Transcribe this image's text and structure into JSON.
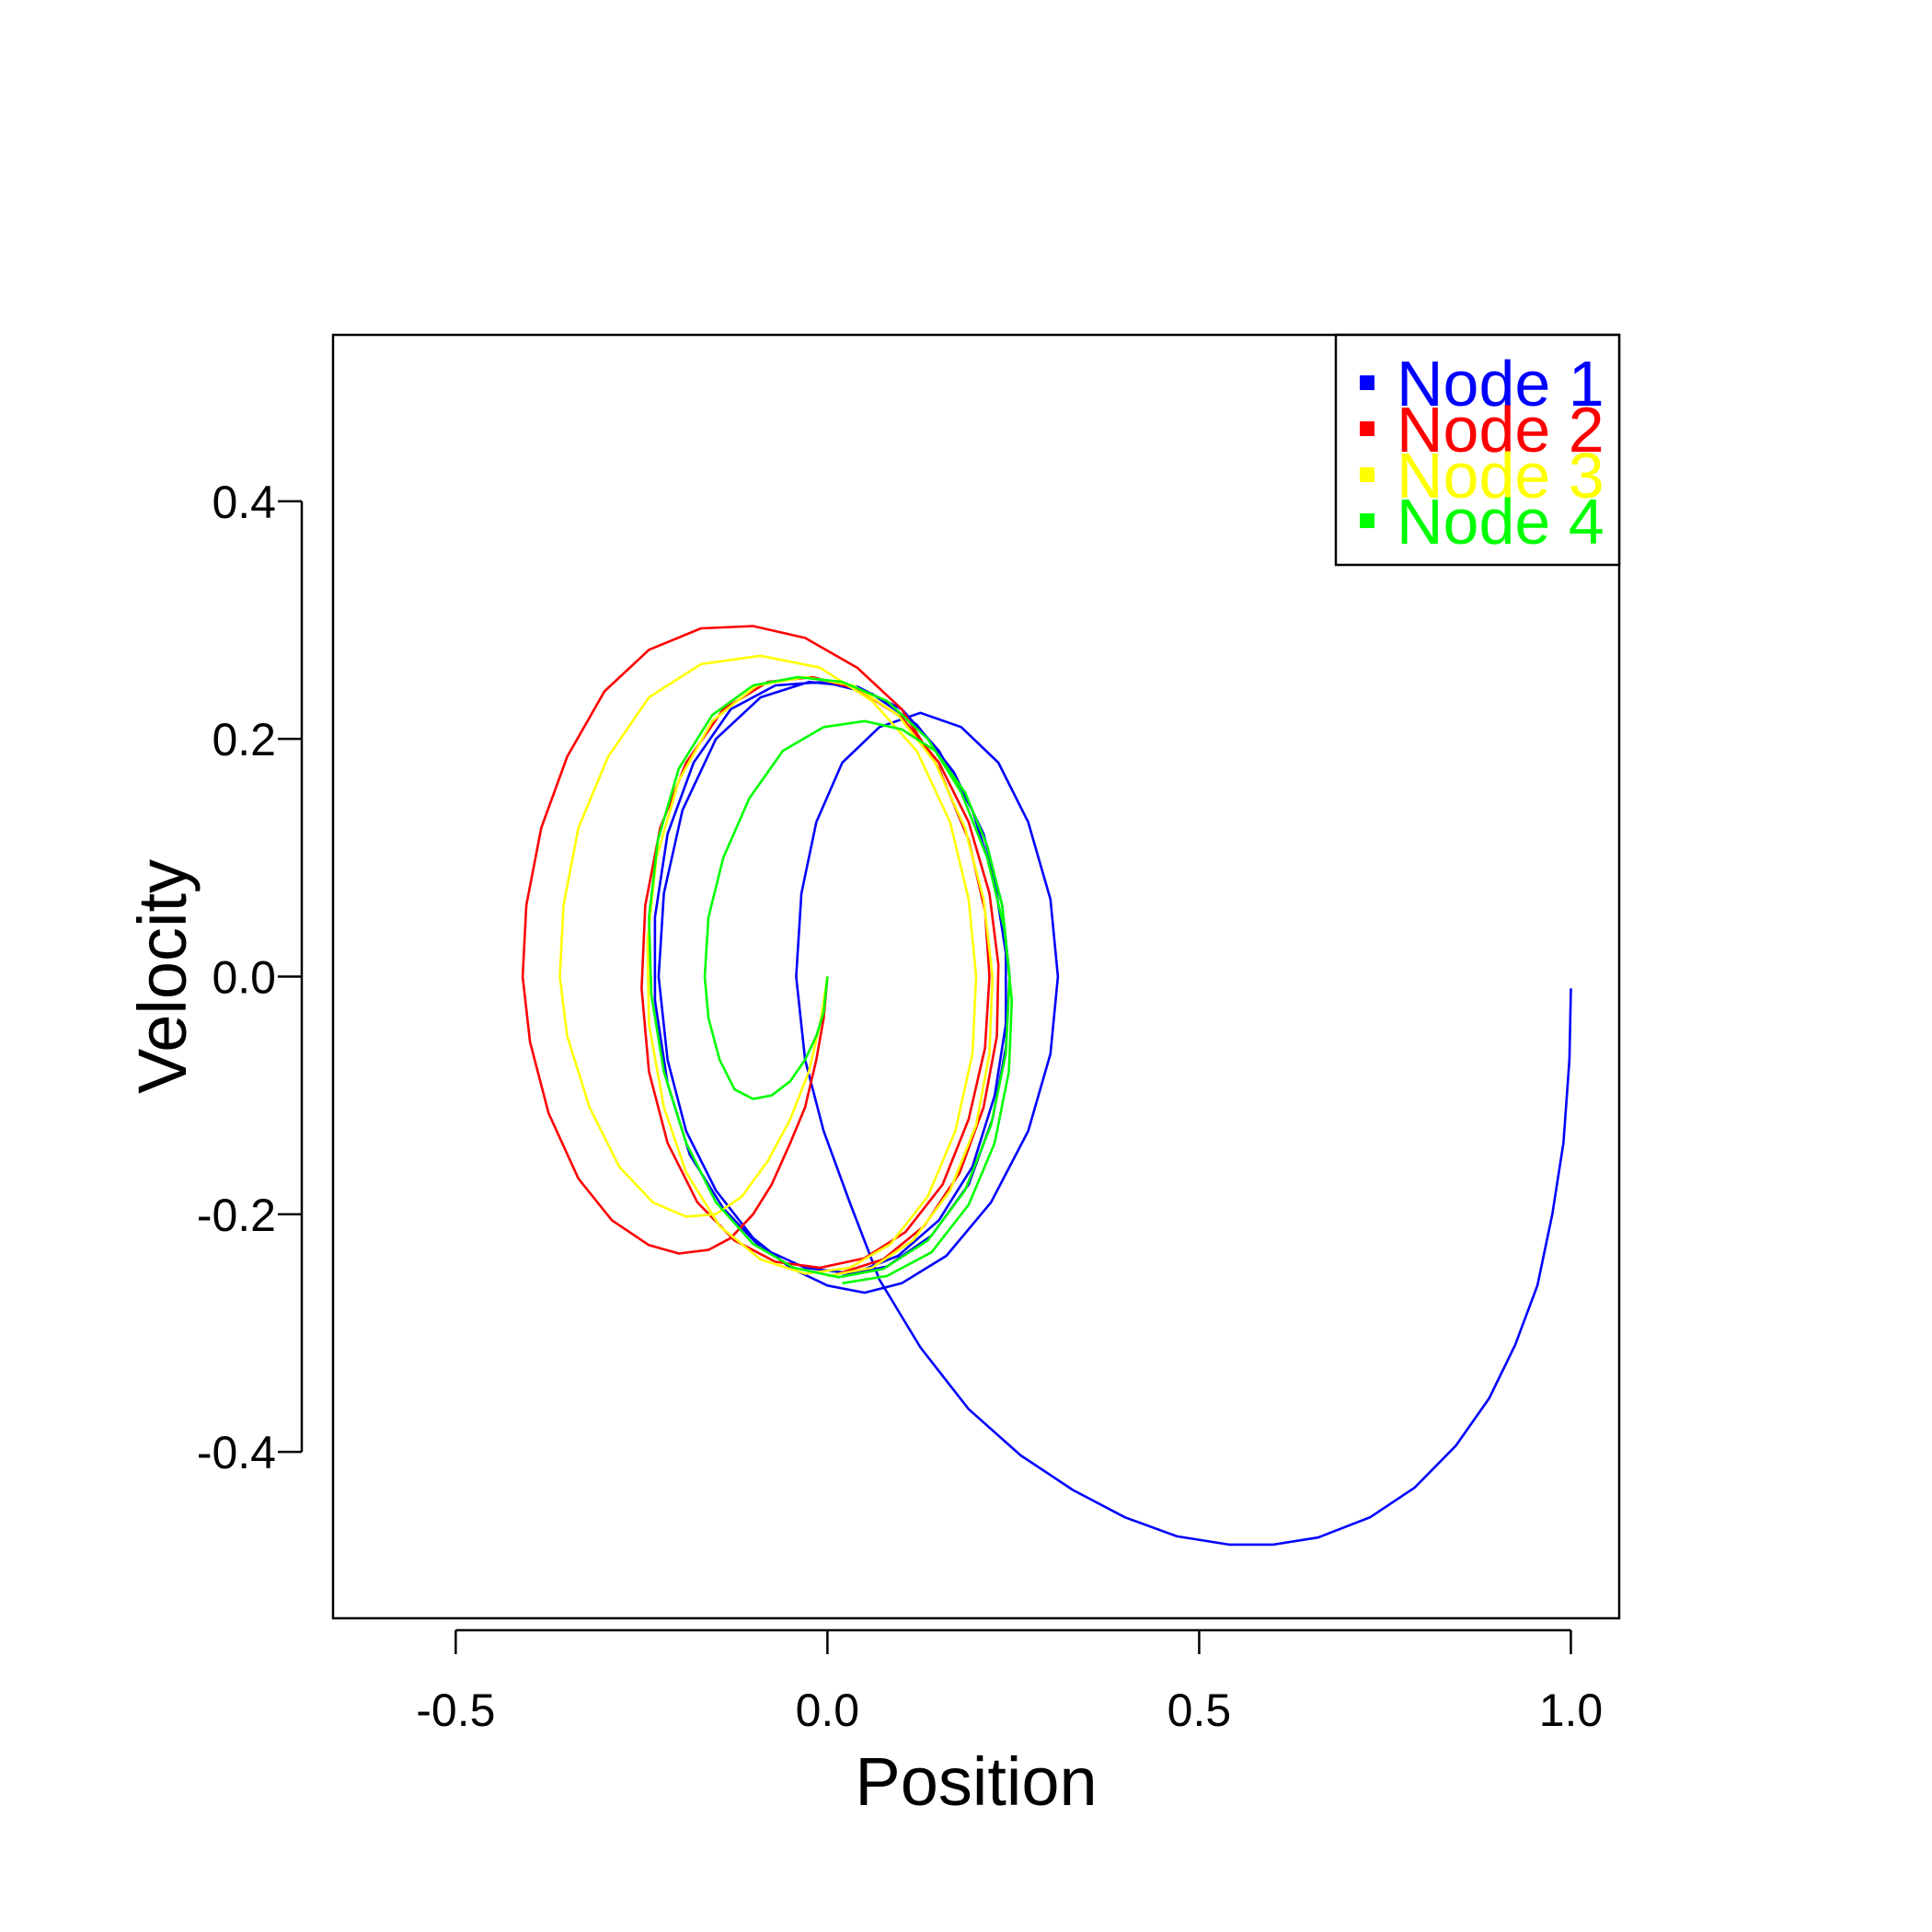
{
  "chart_data": {
    "type": "line",
    "title": "",
    "xlabel": "Position",
    "ylabel": "Velocity",
    "xlim": [
      -0.665,
      1.065
    ],
    "ylim": [
      -0.54,
      0.54
    ],
    "xticks": [
      -0.5,
      0.0,
      0.5,
      1.0
    ],
    "xtick_labels": [
      "-0.5",
      "0.0",
      "0.5",
      "1.0"
    ],
    "yticks": [
      -0.4,
      -0.2,
      0.0,
      0.2,
      0.4
    ],
    "ytick_labels": [
      "-0.4",
      "-0.2",
      "0.0",
      "0.2",
      "0.4"
    ],
    "grid": false,
    "legend_position": "top-right",
    "series": [
      {
        "name": "Node 1",
        "color": "#0000FF",
        "points": [
          [
            1.0,
            -0.01
          ],
          [
            0.998,
            -0.07
          ],
          [
            0.99,
            -0.14
          ],
          [
            0.975,
            -0.2
          ],
          [
            0.955,
            -0.26
          ],
          [
            0.925,
            -0.31
          ],
          [
            0.89,
            -0.355
          ],
          [
            0.845,
            -0.395
          ],
          [
            0.79,
            -0.43
          ],
          [
            0.73,
            -0.455
          ],
          [
            0.66,
            -0.472
          ],
          [
            0.6,
            -0.478
          ],
          [
            0.54,
            -0.478
          ],
          [
            0.47,
            -0.471
          ],
          [
            0.4,
            -0.455
          ],
          [
            0.33,
            -0.432
          ],
          [
            0.26,
            -0.403
          ],
          [
            0.19,
            -0.364
          ],
          [
            0.125,
            -0.312
          ],
          [
            0.07,
            -0.255
          ],
          [
            0.03,
            -0.19
          ],
          [
            -0.005,
            -0.13
          ],
          [
            -0.03,
            -0.07
          ],
          [
            -0.042,
            0.0
          ],
          [
            -0.035,
            0.07
          ],
          [
            -0.015,
            0.13
          ],
          [
            0.02,
            0.18
          ],
          [
            0.07,
            0.21
          ],
          [
            0.125,
            0.222
          ],
          [
            0.18,
            0.21
          ],
          [
            0.23,
            0.18
          ],
          [
            0.27,
            0.13
          ],
          [
            0.3,
            0.065
          ],
          [
            0.31,
            0.0
          ],
          [
            0.3,
            -0.065
          ],
          [
            0.27,
            -0.13
          ],
          [
            0.22,
            -0.19
          ],
          [
            0.16,
            -0.235
          ],
          [
            0.1,
            -0.258
          ],
          [
            0.05,
            -0.266
          ],
          [
            0.0,
            -0.26
          ],
          [
            -0.05,
            -0.245
          ],
          [
            -0.1,
            -0.22
          ],
          [
            -0.15,
            -0.18
          ],
          [
            -0.19,
            -0.13
          ],
          [
            -0.215,
            -0.07
          ],
          [
            -0.227,
            0.0
          ],
          [
            -0.22,
            0.07
          ],
          [
            -0.195,
            0.14
          ],
          [
            -0.15,
            0.2
          ],
          [
            -0.09,
            0.235
          ],
          [
            -0.025,
            0.248
          ],
          [
            0.04,
            0.244
          ],
          [
            0.1,
            0.225
          ],
          [
            0.15,
            0.19
          ],
          [
            0.195,
            0.14
          ],
          [
            0.225,
            0.08
          ],
          [
            0.24,
            0.02
          ],
          [
            0.24,
            -0.04
          ],
          [
            0.225,
            -0.1
          ],
          [
            0.195,
            -0.16
          ],
          [
            0.15,
            -0.205
          ],
          [
            0.095,
            -0.235
          ],
          [
            0.035,
            -0.25
          ],
          [
            -0.03,
            -0.245
          ],
          [
            -0.09,
            -0.228
          ],
          [
            -0.14,
            -0.195
          ],
          [
            -0.185,
            -0.15
          ],
          [
            -0.215,
            -0.09
          ],
          [
            -0.232,
            -0.02
          ],
          [
            -0.232,
            0.05
          ],
          [
            -0.215,
            0.12
          ],
          [
            -0.18,
            0.18
          ],
          [
            -0.13,
            0.225
          ],
          [
            -0.07,
            0.245
          ],
          [
            -0.005,
            0.248
          ],
          [
            0.06,
            0.238
          ],
          [
            0.12,
            0.212
          ],
          [
            0.17,
            0.172
          ],
          [
            0.21,
            0.12
          ],
          [
            0.235,
            0.06
          ],
          [
            0.245,
            0.0
          ],
          [
            0.24,
            -0.06
          ],
          [
            0.222,
            -0.12
          ],
          [
            0.19,
            -0.175
          ],
          [
            0.14,
            -0.218
          ],
          [
            0.08,
            -0.244
          ],
          [
            0.02,
            -0.252
          ]
        ]
      },
      {
        "name": "Node 2",
        "color": "#FF0000",
        "points": [
          [
            0.0,
            0.0
          ],
          [
            -0.005,
            -0.035
          ],
          [
            -0.015,
            -0.07
          ],
          [
            -0.03,
            -0.11
          ],
          [
            -0.05,
            -0.14
          ],
          [
            -0.075,
            -0.175
          ],
          [
            -0.1,
            -0.2
          ],
          [
            -0.13,
            -0.22
          ],
          [
            -0.16,
            -0.23
          ],
          [
            -0.2,
            -0.233
          ],
          [
            -0.24,
            -0.226
          ],
          [
            -0.29,
            -0.205
          ],
          [
            -0.335,
            -0.17
          ],
          [
            -0.375,
            -0.115
          ],
          [
            -0.4,
            -0.055
          ],
          [
            -0.41,
            0.0
          ],
          [
            -0.405,
            0.06
          ],
          [
            -0.385,
            0.125
          ],
          [
            -0.35,
            0.185
          ],
          [
            -0.3,
            0.24
          ],
          [
            -0.24,
            0.275
          ],
          [
            -0.17,
            0.293
          ],
          [
            -0.1,
            0.295
          ],
          [
            -0.03,
            0.285
          ],
          [
            0.04,
            0.26
          ],
          [
            0.1,
            0.225
          ],
          [
            0.15,
            0.175
          ],
          [
            0.19,
            0.115
          ],
          [
            0.212,
            0.055
          ],
          [
            0.218,
            0.0
          ],
          [
            0.212,
            -0.06
          ],
          [
            0.19,
            -0.12
          ],
          [
            0.155,
            -0.175
          ],
          [
            0.105,
            -0.215
          ],
          [
            0.05,
            -0.237
          ],
          [
            -0.01,
            -0.245
          ],
          [
            -0.07,
            -0.24
          ],
          [
            -0.125,
            -0.222
          ],
          [
            -0.175,
            -0.19
          ],
          [
            -0.215,
            -0.14
          ],
          [
            -0.24,
            -0.08
          ],
          [
            -0.25,
            -0.01
          ],
          [
            -0.245,
            0.06
          ],
          [
            -0.225,
            0.125
          ],
          [
            -0.19,
            0.18
          ],
          [
            -0.14,
            0.225
          ],
          [
            -0.08,
            0.248
          ],
          [
            -0.02,
            0.252
          ],
          [
            0.04,
            0.242
          ],
          [
            0.1,
            0.218
          ],
          [
            0.15,
            0.18
          ],
          [
            0.19,
            0.13
          ],
          [
            0.218,
            0.07
          ],
          [
            0.23,
            0.01
          ],
          [
            0.228,
            -0.05
          ],
          [
            0.21,
            -0.11
          ],
          [
            0.178,
            -0.165
          ],
          [
            0.13,
            -0.21
          ],
          [
            0.075,
            -0.238
          ],
          [
            0.015,
            -0.25
          ]
        ]
      },
      {
        "name": "Node 3",
        "color": "#FFFF00",
        "points": [
          [
            0.0,
            0.0
          ],
          [
            -0.01,
            -0.04
          ],
          [
            -0.025,
            -0.08
          ],
          [
            -0.05,
            -0.12
          ],
          [
            -0.08,
            -0.155
          ],
          [
            -0.115,
            -0.185
          ],
          [
            -0.15,
            -0.2
          ],
          [
            -0.19,
            -0.202
          ],
          [
            -0.235,
            -0.19
          ],
          [
            -0.28,
            -0.16
          ],
          [
            -0.32,
            -0.11
          ],
          [
            -0.35,
            -0.05
          ],
          [
            -0.36,
            0.0
          ],
          [
            -0.355,
            0.06
          ],
          [
            -0.335,
            0.125
          ],
          [
            -0.295,
            0.185
          ],
          [
            -0.24,
            0.235
          ],
          [
            -0.17,
            0.263
          ],
          [
            -0.09,
            0.27
          ],
          [
            -0.01,
            0.26
          ],
          [
            0.06,
            0.232
          ],
          [
            0.12,
            0.19
          ],
          [
            0.165,
            0.13
          ],
          [
            0.19,
            0.065
          ],
          [
            0.2,
            0.0
          ],
          [
            0.195,
            -0.065
          ],
          [
            0.172,
            -0.13
          ],
          [
            0.135,
            -0.185
          ],
          [
            0.085,
            -0.225
          ],
          [
            0.03,
            -0.245
          ],
          [
            -0.03,
            -0.25
          ],
          [
            -0.09,
            -0.238
          ],
          [
            -0.145,
            -0.21
          ],
          [
            -0.19,
            -0.165
          ],
          [
            -0.22,
            -0.11
          ],
          [
            -0.24,
            -0.04
          ],
          [
            -0.242,
            0.03
          ],
          [
            -0.23,
            0.1
          ],
          [
            -0.2,
            0.165
          ],
          [
            -0.155,
            0.215
          ],
          [
            -0.095,
            0.245
          ],
          [
            -0.03,
            0.252
          ],
          [
            0.035,
            0.245
          ],
          [
            0.095,
            0.22
          ],
          [
            0.145,
            0.18
          ],
          [
            0.185,
            0.125
          ],
          [
            0.21,
            0.065
          ],
          [
            0.222,
            0.0
          ],
          [
            0.218,
            -0.065
          ],
          [
            0.2,
            -0.125
          ],
          [
            0.165,
            -0.18
          ],
          [
            0.115,
            -0.222
          ],
          [
            0.06,
            -0.245
          ],
          [
            0.0,
            -0.252
          ]
        ]
      },
      {
        "name": "Node 4",
        "color": "#00FF00",
        "points": [
          [
            0.0,
            0.0
          ],
          [
            -0.005,
            -0.03
          ],
          [
            -0.015,
            -0.05
          ],
          [
            -0.03,
            -0.07
          ],
          [
            -0.05,
            -0.088
          ],
          [
            -0.075,
            -0.1
          ],
          [
            -0.1,
            -0.103
          ],
          [
            -0.125,
            -0.095
          ],
          [
            -0.145,
            -0.07
          ],
          [
            -0.16,
            -0.035
          ],
          [
            -0.165,
            0.0
          ],
          [
            -0.16,
            0.05
          ],
          [
            -0.14,
            0.1
          ],
          [
            -0.105,
            0.15
          ],
          [
            -0.06,
            0.19
          ],
          [
            -0.005,
            0.21
          ],
          [
            0.05,
            0.215
          ],
          [
            0.1,
            0.208
          ],
          [
            0.145,
            0.19
          ],
          [
            0.185,
            0.155
          ],
          [
            0.215,
            0.11
          ],
          [
            0.235,
            0.06
          ],
          [
            0.245,
            0.0
          ],
          [
            0.24,
            -0.065
          ],
          [
            0.22,
            -0.125
          ],
          [
            0.185,
            -0.18
          ],
          [
            0.135,
            -0.222
          ],
          [
            0.075,
            -0.246
          ],
          [
            0.015,
            -0.253
          ],
          [
            -0.045,
            -0.245
          ],
          [
            -0.1,
            -0.225
          ],
          [
            -0.15,
            -0.19
          ],
          [
            -0.19,
            -0.14
          ],
          [
            -0.22,
            -0.08
          ],
          [
            -0.237,
            -0.015
          ],
          [
            -0.24,
            0.05
          ],
          [
            -0.228,
            0.115
          ],
          [
            -0.2,
            0.175
          ],
          [
            -0.155,
            0.22
          ],
          [
            -0.1,
            0.245
          ],
          [
            -0.04,
            0.252
          ],
          [
            0.02,
            0.248
          ],
          [
            0.08,
            0.232
          ],
          [
            0.135,
            0.2
          ],
          [
            0.18,
            0.155
          ],
          [
            0.215,
            0.1
          ],
          [
            0.238,
            0.04
          ],
          [
            0.248,
            -0.02
          ],
          [
            0.244,
            -0.08
          ],
          [
            0.225,
            -0.14
          ],
          [
            0.19,
            -0.192
          ],
          [
            0.14,
            -0.232
          ],
          [
            0.08,
            -0.252
          ],
          [
            0.02,
            -0.258
          ]
        ]
      }
    ]
  }
}
